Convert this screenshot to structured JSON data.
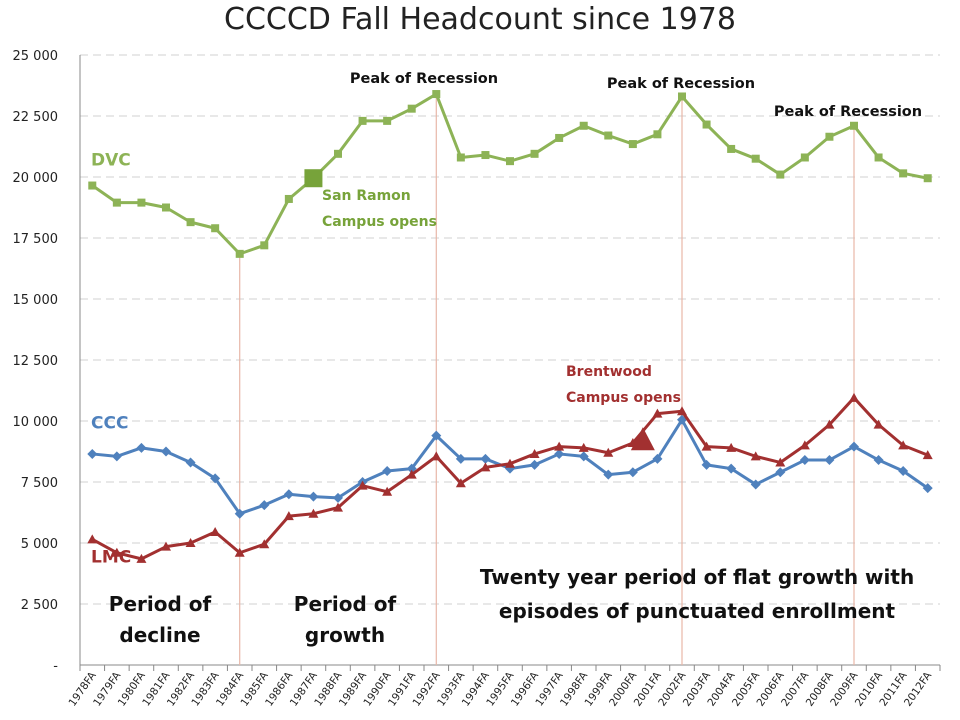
{
  "chart_data": {
    "type": "line",
    "title": "CCCCD Fall Headcount since 1978",
    "categories": [
      "1978FA",
      "1979FA",
      "1980FA",
      "1981FA",
      "1982FA",
      "1983FA",
      "1984FA",
      "1985FA",
      "1986FA",
      "1987FA",
      "1988FA",
      "1989FA",
      "1990FA",
      "1991FA",
      "1992FA",
      "1993FA",
      "1994FA",
      "1995FA",
      "1996FA",
      "1997FA",
      "1998FA",
      "1999FA",
      "2000FA",
      "2001FA",
      "2002FA",
      "2003FA",
      "2004FA",
      "2005FA",
      "2006FA",
      "2007FA",
      "2008FA",
      "2009FA",
      "2010FA",
      "2011FA",
      "2012FA"
    ],
    "y_ticks": [
      "-",
      "2 500",
      "5 000",
      "7 500",
      "10 000",
      "12 500",
      "15 000",
      "17 500",
      "20 000",
      "22 500",
      "25 000"
    ],
    "ylim": [
      0,
      25000
    ],
    "grid": true,
    "series": [
      {
        "name": "DVC",
        "color": "#8db356",
        "marker": "square",
        "values": [
          19650,
          18950,
          18950,
          18750,
          18150,
          17900,
          16850,
          17200,
          19100,
          19950,
          20950,
          22300,
          22300,
          22800,
          23400,
          20800,
          20900,
          20650,
          20950,
          21600,
          22100,
          21700,
          21350,
          21750,
          23300,
          22150,
          21150,
          20750,
          20100,
          20800,
          21650,
          22100,
          20800,
          20150,
          19950
        ]
      },
      {
        "name": "CCC",
        "color": "#4f81bd",
        "marker": "diamond",
        "values": [
          8650,
          8550,
          8900,
          8750,
          8300,
          7650,
          6200,
          6550,
          7000,
          6900,
          6850,
          7500,
          7950,
          8050,
          9400,
          8450,
          8450,
          8050,
          8200,
          8650,
          8550,
          7800,
          7900,
          8450,
          10050,
          8200,
          8050,
          7400,
          7900,
          8400,
          8400,
          8950,
          8400,
          7950,
          7250
        ]
      },
      {
        "name": "LMC",
        "color": "#a23030",
        "marker": "triangle",
        "values": [
          5150,
          4600,
          4350,
          4850,
          5000,
          5450,
          4600,
          4950,
          6100,
          6200,
          6450,
          7350,
          7100,
          7800,
          8550,
          7450,
          8100,
          8250,
          8650,
          8950,
          8900,
          8700,
          9100,
          10300,
          10400,
          8950,
          8900,
          8550,
          8300,
          9000,
          9850,
          10950,
          9850,
          9000,
          8600
        ]
      }
    ],
    "peak_lines": [
      "1984FA",
      "1992FA",
      "2002FA",
      "2009FA"
    ],
    "annotations": {
      "peak_label": "Peak of Recession",
      "san_ramon_line1": "San Ramon",
      "san_ramon_line2": "Campus opens",
      "brentwood_line1": "Brentwood",
      "brentwood_line2": "Campus opens",
      "decline_line1": "Period of",
      "decline_line2": "decline",
      "growth_line1": "Period of",
      "growth_line2": "growth",
      "flat_line1": "Twenty year period of flat growth with",
      "flat_line2": "episodes of punctuated enrollment"
    }
  }
}
